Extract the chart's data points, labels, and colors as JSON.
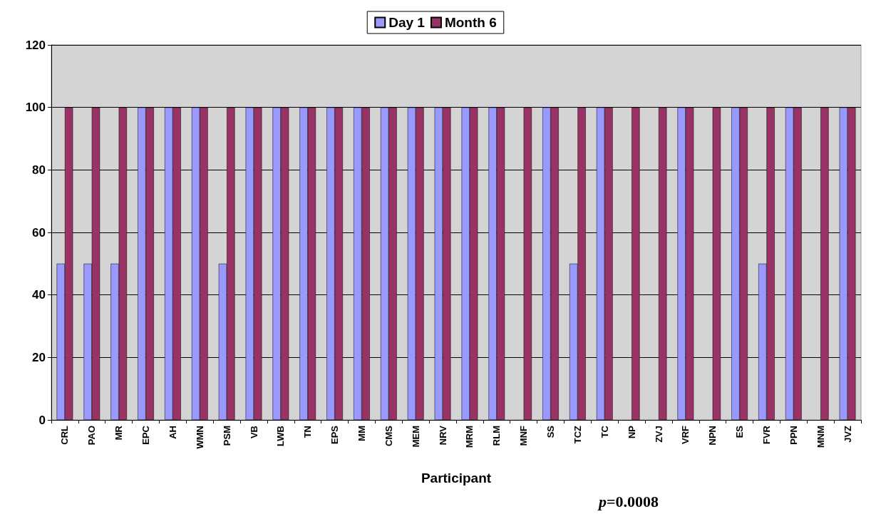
{
  "chart_data": {
    "type": "bar",
    "xlabel": "Participant",
    "categories": [
      "CRL",
      "PAO",
      "MR",
      "EPC",
      "AH",
      "WMN",
      "PSM",
      "VB",
      "LWB",
      "TN",
      "EPS",
      "MM",
      "CMS",
      "MEM",
      "NRV",
      "MRM",
      "RLM",
      "MNF",
      "SS",
      "TCZ",
      "TC",
      "NP",
      "ZVJ",
      "VRF",
      "NPN",
      "ES",
      "FVR",
      "PPN",
      "MNM",
      "JVZ"
    ],
    "series": [
      {
        "name": "Day 1",
        "color": "#9999ff",
        "values": [
          50,
          50,
          50,
          100,
          100,
          100,
          50,
          100,
          100,
          100,
          100,
          100,
          100,
          100,
          100,
          100,
          100,
          0,
          100,
          50,
          100,
          0,
          0,
          100,
          0,
          100,
          50,
          100,
          0,
          100
        ]
      },
      {
        "name": "Month 6",
        "color": "#993366",
        "values": [
          100,
          100,
          100,
          100,
          100,
          100,
          100,
          100,
          100,
          100,
          100,
          100,
          100,
          100,
          100,
          100,
          100,
          100,
          100,
          100,
          100,
          100,
          100,
          100,
          100,
          100,
          100,
          100,
          100,
          100
        ]
      }
    ],
    "ylim": [
      0,
      120
    ],
    "yticks": [
      0,
      20,
      40,
      60,
      80,
      100,
      120
    ],
    "grid": "y",
    "legend": "top",
    "annotations": [
      "p=0.0008"
    ]
  }
}
